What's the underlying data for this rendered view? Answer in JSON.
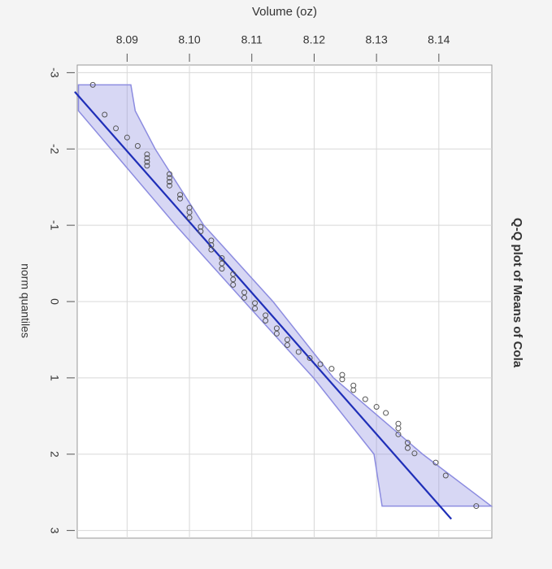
{
  "chart_data": {
    "type": "scatter",
    "title": "Q-Q plot of Means of Cola",
    "x_label": "Volume (oz)",
    "y_label": "norm quantiles",
    "xlim": [
      8.082,
      8.1485
    ],
    "ylim": [
      -3.1,
      3.1
    ],
    "xticks": [
      8.09,
      {
        "value": 8.1,
        "label": "8.10"
      },
      8.11,
      8.12,
      8.13,
      8.14
    ],
    "yticks": [
      -3,
      -2,
      -1,
      0,
      1,
      2,
      3
    ],
    "grid": true,
    "point_color": "#555555",
    "line_color": "#1f2fb8",
    "band_color": "#8c8ce0",
    "points": {
      "x": [
        8.0845,
        8.0864,
        8.0882,
        8.09,
        8.0917,
        8.0932,
        8.0932,
        8.0932,
        8.0932,
        8.0968,
        8.0968,
        8.0968,
        8.0968,
        8.0985,
        8.0985,
        8.1,
        8.1,
        8.1,
        8.1018,
        8.1018,
        8.1035,
        8.1035,
        8.1035,
        8.1052,
        8.1052,
        8.1052,
        8.107,
        8.107,
        8.107,
        8.1088,
        8.1088,
        8.1105,
        8.1105,
        8.1122,
        8.1122,
        8.114,
        8.114,
        8.1157,
        8.1157,
        8.1175,
        8.1193,
        8.121,
        8.1228,
        8.1245,
        8.1245,
        8.1263,
        8.1263,
        8.1282,
        8.13,
        8.1315,
        8.1335,
        8.1335,
        8.1335,
        8.135,
        8.135,
        8.1361,
        8.1395,
        8.1411,
        8.146
      ],
      "y": [
        -2.84,
        -2.45,
        -2.27,
        -2.15,
        -2.04,
        -1.93,
        -1.88,
        -1.83,
        -1.78,
        -1.67,
        -1.62,
        -1.57,
        -1.52,
        -1.4,
        -1.35,
        -1.23,
        -1.17,
        -1.1,
        -0.98,
        -0.92,
        -0.8,
        -0.74,
        -0.68,
        -0.57,
        -0.5,
        -0.43,
        -0.36,
        -0.29,
        -0.22,
        -0.12,
        -0.05,
        0.02,
        0.09,
        0.18,
        0.25,
        0.35,
        0.42,
        0.5,
        0.57,
        0.66,
        0.74,
        0.82,
        0.88,
        0.96,
        1.02,
        1.1,
        1.16,
        1.28,
        1.38,
        1.46,
        1.6,
        1.66,
        1.74,
        1.85,
        1.92,
        1.99,
        2.11,
        2.28,
        2.68
      ]
    },
    "fit_line": {
      "x": [
        8.0816,
        8.142
      ],
      "y": [
        -2.75,
        2.85
      ]
    },
    "band": {
      "y": [
        -2.84,
        -2.5,
        -2,
        -1,
        0,
        1,
        2,
        2.68
      ],
      "lower": [
        8.0822,
        8.0822,
        8.0874,
        8.0978,
        8.1088,
        8.1199,
        8.1296,
        8.1309
      ],
      "upper": [
        8.0906,
        8.0913,
        8.0945,
        8.1023,
        8.1134,
        8.1231,
        8.1374,
        8.1484
      ]
    }
  }
}
